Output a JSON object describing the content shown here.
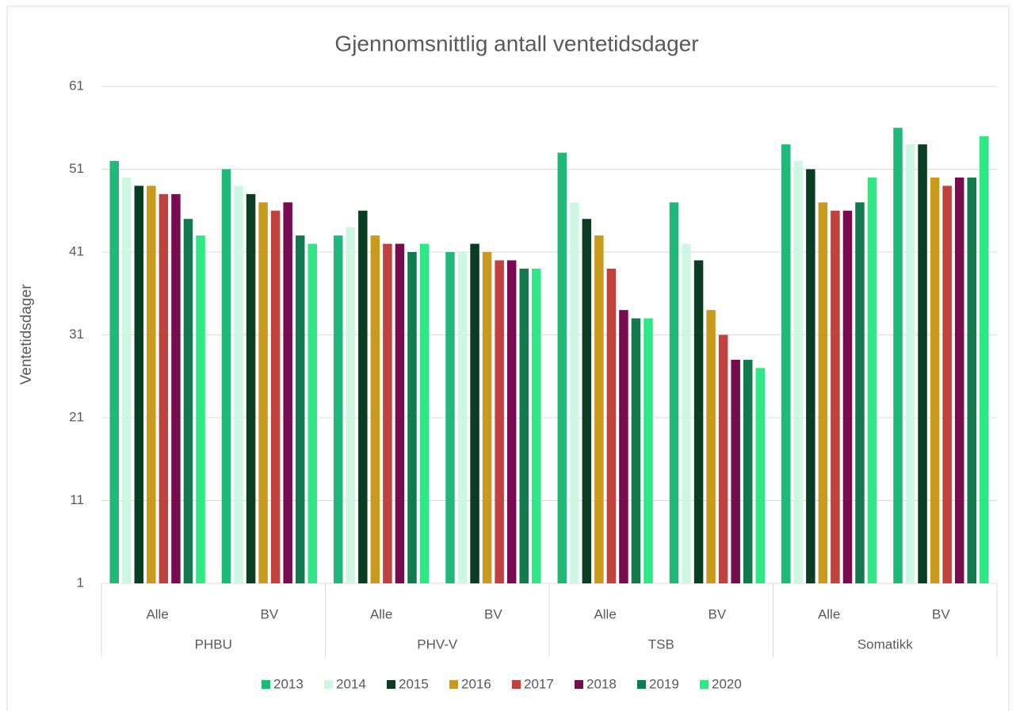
{
  "chart_data": {
    "type": "bar",
    "title": "Gjennomsnittlig antall ventetidsdager",
    "ylabel": "Ventetidsdager",
    "groups": [
      "PHBU",
      "PHV-V",
      "TSB",
      "Somatikk"
    ],
    "categories": [
      "Alle",
      "BV",
      "Alle",
      "BV",
      "Alle",
      "BV",
      "Alle",
      "BV"
    ],
    "ylim": [
      1,
      61
    ],
    "yticks": [
      1,
      11,
      21,
      31,
      41,
      51,
      61
    ],
    "grid": true,
    "legend": "bottom",
    "series": [
      {
        "name": "2013",
        "color": "#20b97a",
        "values": [
          52,
          51,
          43,
          41,
          53,
          47,
          54,
          56
        ]
      },
      {
        "name": "2014",
        "color": "#cdf7e0",
        "values": [
          50,
          49,
          44,
          41,
          47,
          42,
          52,
          54
        ]
      },
      {
        "name": "2015",
        "color": "#0b3d22",
        "values": [
          49,
          48,
          46,
          42,
          45,
          40,
          51,
          54
        ]
      },
      {
        "name": "2016",
        "color": "#c99a1c",
        "values": [
          49,
          47,
          43,
          41,
          43,
          34,
          47,
          50
        ]
      },
      {
        "name": "2017",
        "color": "#c0413d",
        "values": [
          48,
          46,
          42,
          40,
          39,
          31,
          46,
          49
        ]
      },
      {
        "name": "2018",
        "color": "#780a50",
        "values": [
          48,
          47,
          42,
          40,
          34,
          28,
          46,
          50
        ]
      },
      {
        "name": "2019",
        "color": "#137a4f",
        "values": [
          45,
          43,
          41,
          39,
          33,
          28,
          47,
          50
        ]
      },
      {
        "name": "2020",
        "color": "#2de884",
        "values": [
          43,
          42,
          42,
          39,
          33,
          27,
          50,
          55
        ]
      }
    ]
  }
}
